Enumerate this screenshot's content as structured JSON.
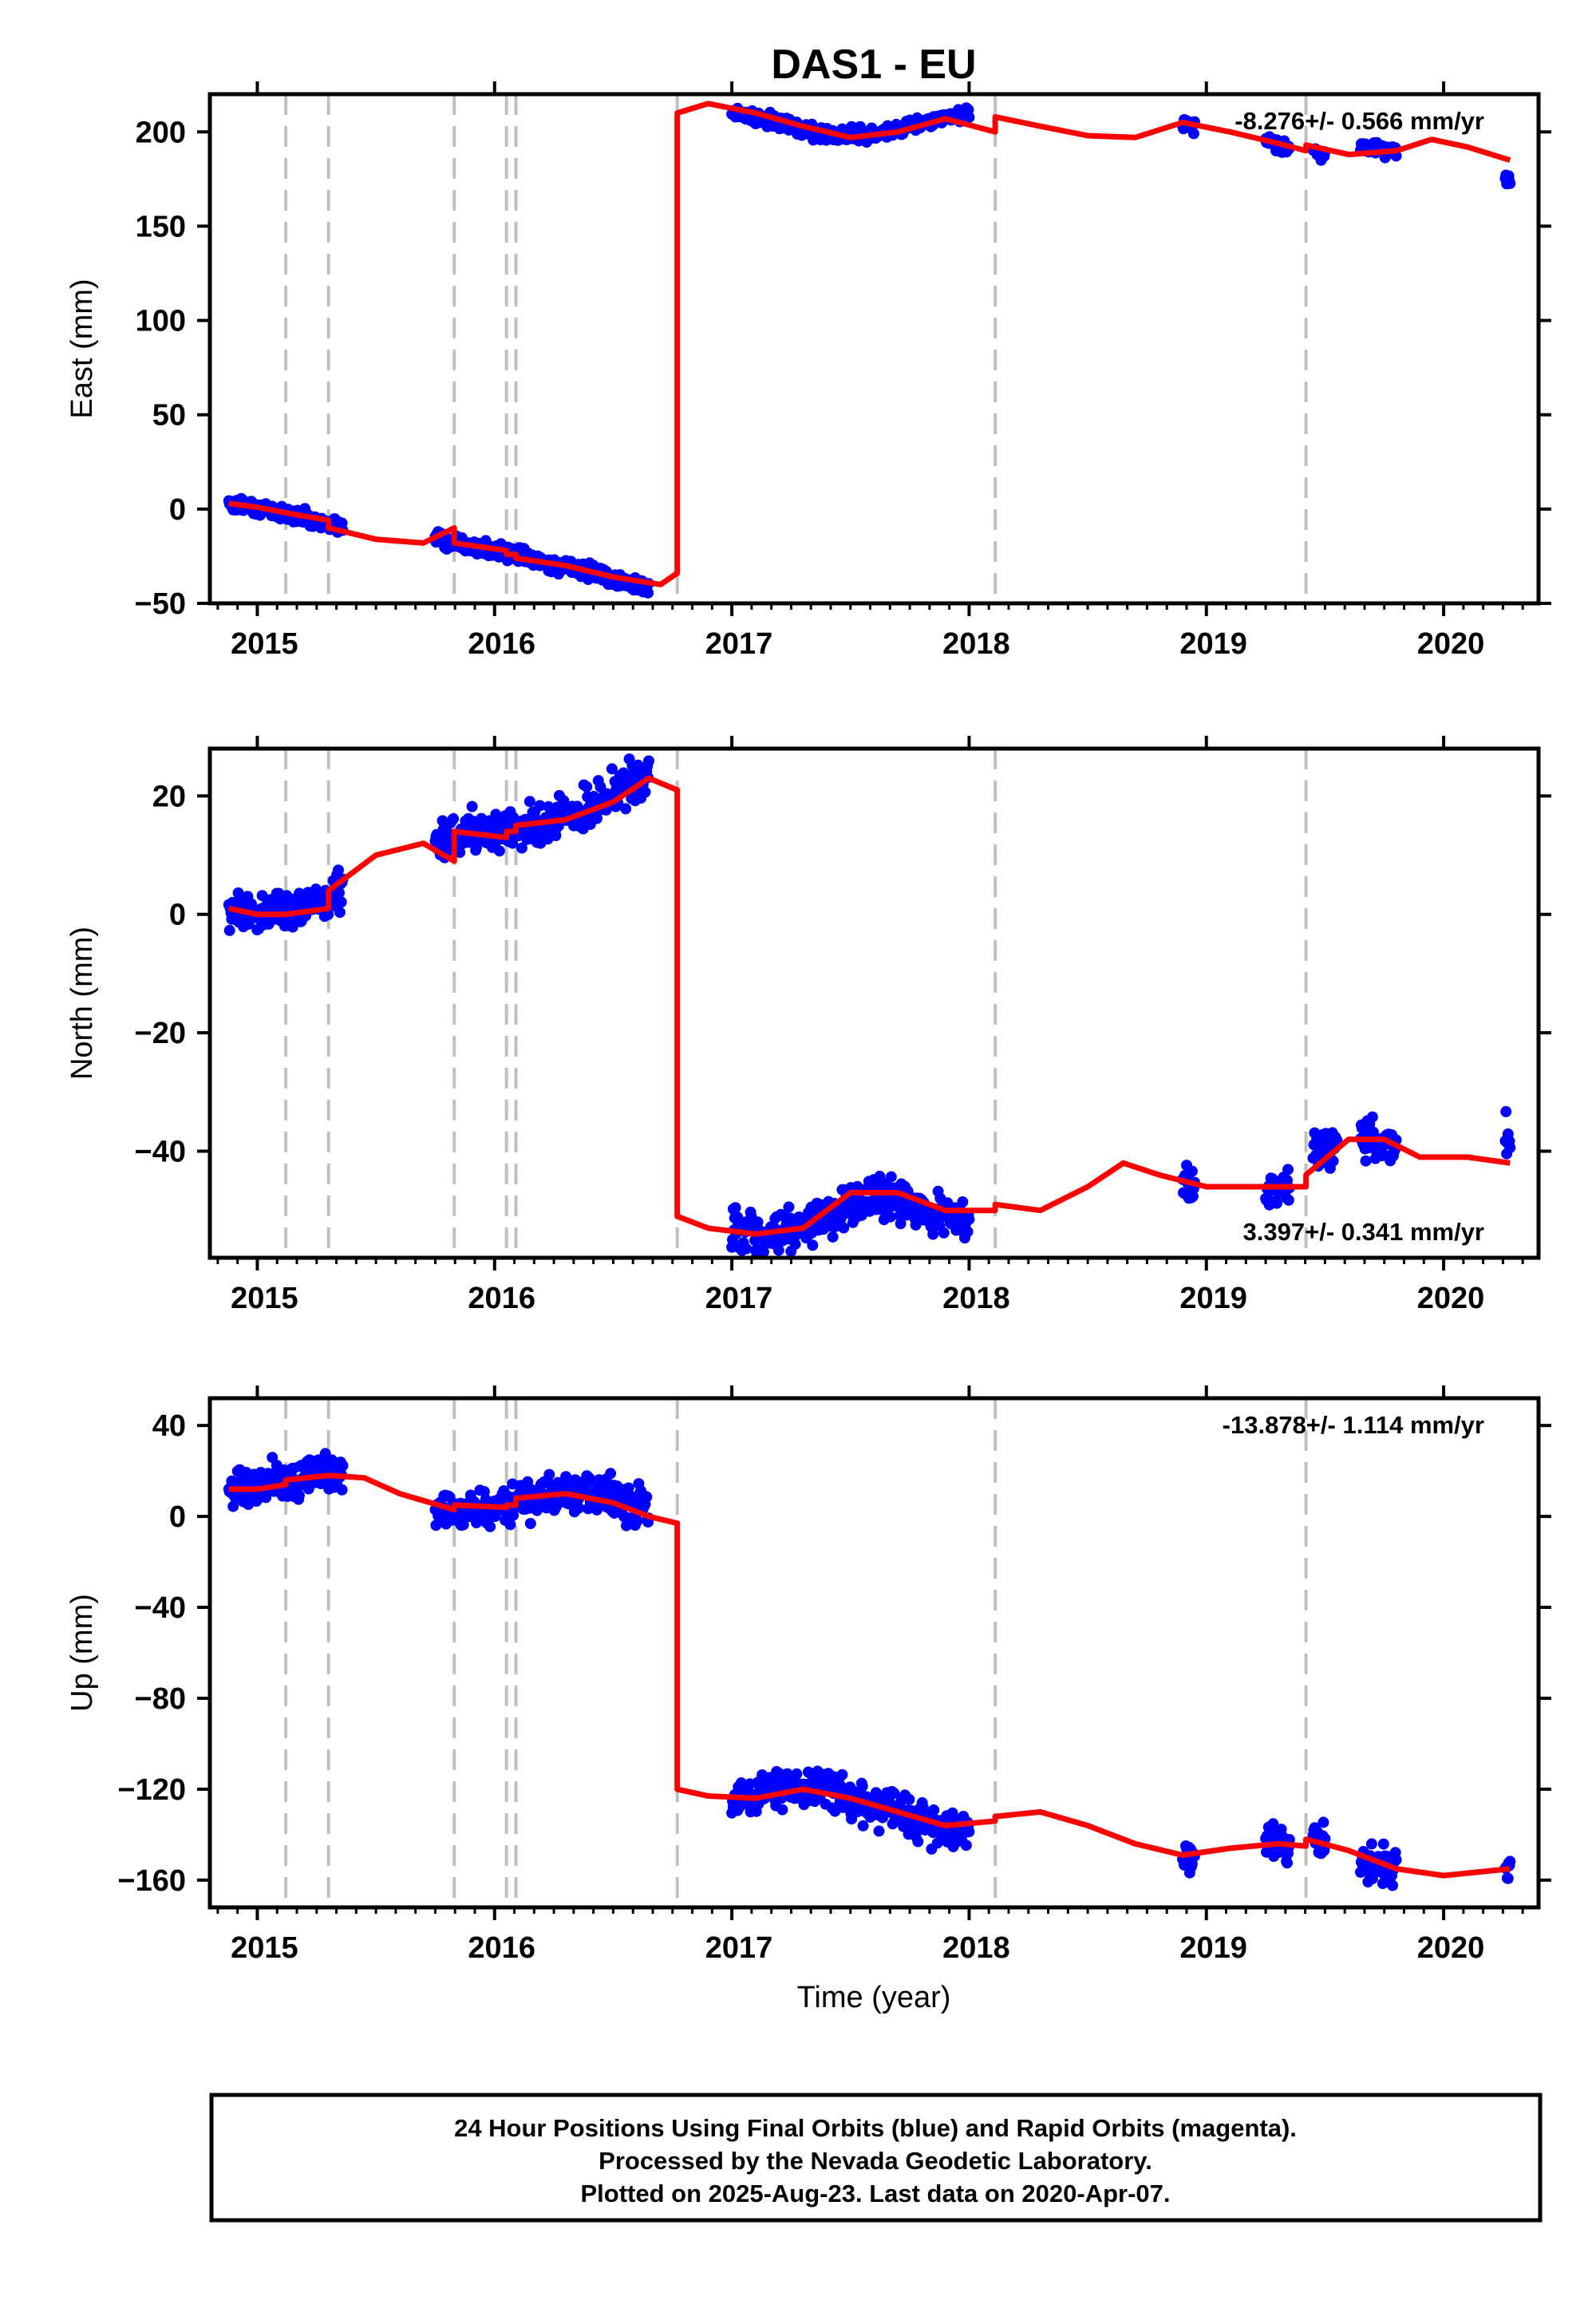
{
  "title": "DAS1 - EU",
  "xlabel": "Time (year)",
  "footer_lines": [
    "24 Hour Positions Using Final Orbits (blue) and Rapid Orbits (magenta).",
    "Processed by the Nevada Geodetic Laboratory.",
    "Plotted on 2025-Aug-23. Last data on 2020-Apr-07."
  ],
  "colors": {
    "data": "#0000ff",
    "model": "#ff0000",
    "event_line": "#c0c0c0",
    "axis": "#000000"
  },
  "chart_data": [
    {
      "type": "scatter",
      "ylabel": "East (mm)",
      "rate_text": "-8.276+/- 0.566 mm/yr",
      "rate_position": "top-right",
      "xlim": [
        2014.8,
        2020.4
      ],
      "ylim": [
        -50,
        220
      ],
      "x_ticks": [
        "2015",
        "2016",
        "2017",
        "2018",
        "2019",
        "2020"
      ],
      "y_ticks": [
        -50,
        0,
        50,
        100,
        150,
        200
      ],
      "event_lines": [
        2015.12,
        2015.3,
        2015.83,
        2016.05,
        2016.09,
        2016.77,
        2018.11,
        2019.42
      ],
      "series": [
        {
          "role": "daily positions",
          "segments": [
            {
              "x": [
                2014.88,
                2015.0,
                2015.1,
                2015.2,
                2015.3,
                2015.36
              ],
              "y": [
                3,
                1,
                -2,
                -4,
                -8,
                -10
              ]
            },
            {
              "x": [
                2015.75,
                2015.85,
                2016.0,
                2016.2,
                2016.4,
                2016.6,
                2016.65
              ],
              "y": [
                -15,
                -18,
                -22,
                -28,
                -33,
                -40,
                -42
              ]
            },
            {
              "x": [
                2017.0,
                2017.2,
                2017.4,
                2017.6,
                2017.8,
                2018.0
              ],
              "y": [
                210,
                205,
                198,
                198,
                205,
                210
              ]
            },
            {
              "x": [
                2018.9,
                2018.95
              ],
              "y": [
                205,
                204
              ]
            },
            {
              "x": [
                2019.25,
                2019.35
              ],
              "y": [
                195,
                192
              ]
            },
            {
              "x": [
                2019.45,
                2019.5
              ],
              "y": [
                190,
                188
              ]
            },
            {
              "x": [
                2019.65,
                2019.8
              ],
              "y": [
                192,
                190
              ]
            },
            {
              "x": [
                2020.26,
                2020.28
              ],
              "y": [
                176,
                174
              ]
            }
          ]
        },
        {
          "role": "model",
          "x": [
            2014.88,
            2015.0,
            2015.12,
            2015.3,
            2015.3,
            2015.5,
            2015.7,
            2015.83,
            2015.83,
            2016.05,
            2016.05,
            2016.09,
            2016.09,
            2016.3,
            2016.5,
            2016.7,
            2016.77,
            2016.77,
            2016.9,
            2017.1,
            2017.3,
            2017.5,
            2017.7,
            2017.9,
            2018.11,
            2018.11,
            2018.3,
            2018.5,
            2018.7,
            2018.9,
            2019.1,
            2019.3,
            2019.42,
            2019.42,
            2019.6,
            2019.8,
            2019.95,
            2020.1,
            2020.28
          ],
          "y": [
            3,
            1,
            -2,
            -6,
            -10,
            -16,
            -18,
            -10,
            -18,
            -22,
            -24,
            -24,
            -26,
            -30,
            -36,
            -40,
            -34,
            210,
            215,
            210,
            203,
            197,
            200,
            207,
            200,
            208,
            203,
            198,
            197,
            205,
            200,
            194,
            190,
            193,
            188,
            190,
            196,
            192,
            185
          ]
        }
      ]
    },
    {
      "type": "scatter",
      "ylabel": "North (mm)",
      "rate_text": "3.397+/- 0.341 mm/yr",
      "rate_position": "bottom-right",
      "xlim": [
        2014.8,
        2020.4
      ],
      "ylim": [
        -58,
        28
      ],
      "x_ticks": [
        "2015",
        "2016",
        "2017",
        "2018",
        "2019",
        "2020"
      ],
      "y_ticks": [
        -40,
        -20,
        0,
        20
      ],
      "event_lines": [
        2015.12,
        2015.3,
        2015.83,
        2016.05,
        2016.09,
        2016.77,
        2018.11,
        2019.42
      ],
      "series": [
        {
          "role": "daily positions",
          "segments": [
            {
              "x": [
                2014.88,
                2015.0,
                2015.15,
                2015.3,
                2015.36
              ],
              "y": [
                1,
                0,
                1,
                2,
                4
              ]
            },
            {
              "x": [
                2015.75,
                2015.9,
                2016.05,
                2016.2,
                2016.4,
                2016.55,
                2016.65
              ],
              "y": [
                12,
                14,
                14,
                15,
                18,
                22,
                24
              ]
            },
            {
              "x": [
                2017.0,
                2017.2,
                2017.4,
                2017.6,
                2017.8,
                2018.0
              ],
              "y": [
                -53,
                -54,
                -51,
                -47,
                -50,
                -52
              ]
            },
            {
              "x": [
                2018.9,
                2018.95
              ],
              "y": [
                -45,
                -46
              ]
            },
            {
              "x": [
                2019.25,
                2019.35
              ],
              "y": [
                -47,
                -45
              ]
            },
            {
              "x": [
                2019.45,
                2019.55
              ],
              "y": [
                -40,
                -39
              ]
            },
            {
              "x": [
                2019.65,
                2019.8
              ],
              "y": [
                -38,
                -39
              ]
            },
            {
              "x": [
                2020.26,
                2020.28
              ],
              "y": [
                -37,
                -38
              ]
            }
          ]
        },
        {
          "role": "model",
          "x": [
            2014.88,
            2015.0,
            2015.12,
            2015.3,
            2015.3,
            2015.5,
            2015.7,
            2015.83,
            2015.83,
            2016.05,
            2016.05,
            2016.09,
            2016.09,
            2016.3,
            2016.5,
            2016.65,
            2016.77,
            2016.77,
            2016.9,
            2017.1,
            2017.3,
            2017.5,
            2017.7,
            2017.9,
            2018.11,
            2018.11,
            2018.3,
            2018.5,
            2018.65,
            2018.8,
            2019.0,
            2019.2,
            2019.42,
            2019.42,
            2019.6,
            2019.75,
            2019.9,
            2020.1,
            2020.28
          ],
          "y": [
            1,
            0,
            0,
            1,
            4,
            10,
            12,
            9,
            14,
            13,
            14,
            14,
            15,
            16,
            19,
            23,
            21,
            -51,
            -53,
            -54,
            -53,
            -47,
            -47,
            -50,
            -50,
            -49,
            -50,
            -46,
            -42,
            -44,
            -46,
            -46,
            -46,
            -44,
            -38,
            -38,
            -41,
            -41,
            -42
          ]
        }
      ]
    },
    {
      "type": "scatter",
      "ylabel": "Up (mm)",
      "rate_text": "-13.878+/- 1.114 mm/yr",
      "rate_position": "top-right",
      "xlim": [
        2014.8,
        2020.4
      ],
      "ylim": [
        -172,
        52
      ],
      "x_ticks": [
        "2015",
        "2016",
        "2017",
        "2018",
        "2019",
        "2020"
      ],
      "y_ticks": [
        -160,
        -120,
        -80,
        -40,
        0,
        40
      ],
      "event_lines": [
        2015.12,
        2015.3,
        2015.83,
        2016.05,
        2016.09,
        2016.77,
        2018.11,
        2019.42
      ],
      "series": [
        {
          "role": "daily positions",
          "segments": [
            {
              "x": [
                2014.88,
                2015.0,
                2015.15,
                2015.3,
                2015.36
              ],
              "y": [
                12,
                14,
                16,
                20,
                18
              ]
            },
            {
              "x": [
                2015.75,
                2015.9,
                2016.05,
                2016.2,
                2016.4,
                2016.55,
                2016.65
              ],
              "y": [
                2,
                3,
                5,
                8,
                10,
                6,
                4
              ]
            },
            {
              "x": [
                2017.0,
                2017.2,
                2017.4,
                2017.6,
                2017.8,
                2018.0
              ],
              "y": [
                -124,
                -120,
                -118,
                -128,
                -135,
                -138
              ]
            },
            {
              "x": [
                2018.9,
                2018.95
              ],
              "y": [
                -148,
                -150
              ]
            },
            {
              "x": [
                2019.25,
                2019.35
              ],
              "y": [
                -142,
                -146
              ]
            },
            {
              "x": [
                2019.45,
                2019.5
              ],
              "y": [
                -142,
                -146
              ]
            },
            {
              "x": [
                2019.65,
                2019.8
              ],
              "y": [
                -152,
                -156
              ]
            },
            {
              "x": [
                2020.26,
                2020.28
              ],
              "y": [
                -153,
                -155
              ]
            }
          ]
        },
        {
          "role": "model",
          "x": [
            2014.88,
            2015.0,
            2015.12,
            2015.12,
            2015.3,
            2015.45,
            2015.6,
            2015.83,
            2015.83,
            2016.05,
            2016.05,
            2016.09,
            2016.09,
            2016.3,
            2016.5,
            2016.65,
            2016.77,
            2016.77,
            2016.9,
            2017.1,
            2017.3,
            2017.5,
            2017.7,
            2017.9,
            2018.11,
            2018.11,
            2018.3,
            2018.5,
            2018.7,
            2018.9,
            2019.1,
            2019.3,
            2019.42,
            2019.42,
            2019.6,
            2019.8,
            2020.0,
            2020.28
          ],
          "y": [
            12,
            12,
            14,
            16,
            18,
            17,
            10,
            3,
            5,
            4,
            5,
            5,
            8,
            10,
            6,
            0,
            -3,
            -120,
            -123,
            -124,
            -120,
            -124,
            -130,
            -136,
            -134,
            -132,
            -130,
            -136,
            -144,
            -149,
            -146,
            -144,
            -145,
            -142,
            -147,
            -155,
            -158,
            -155
          ]
        }
      ]
    }
  ]
}
